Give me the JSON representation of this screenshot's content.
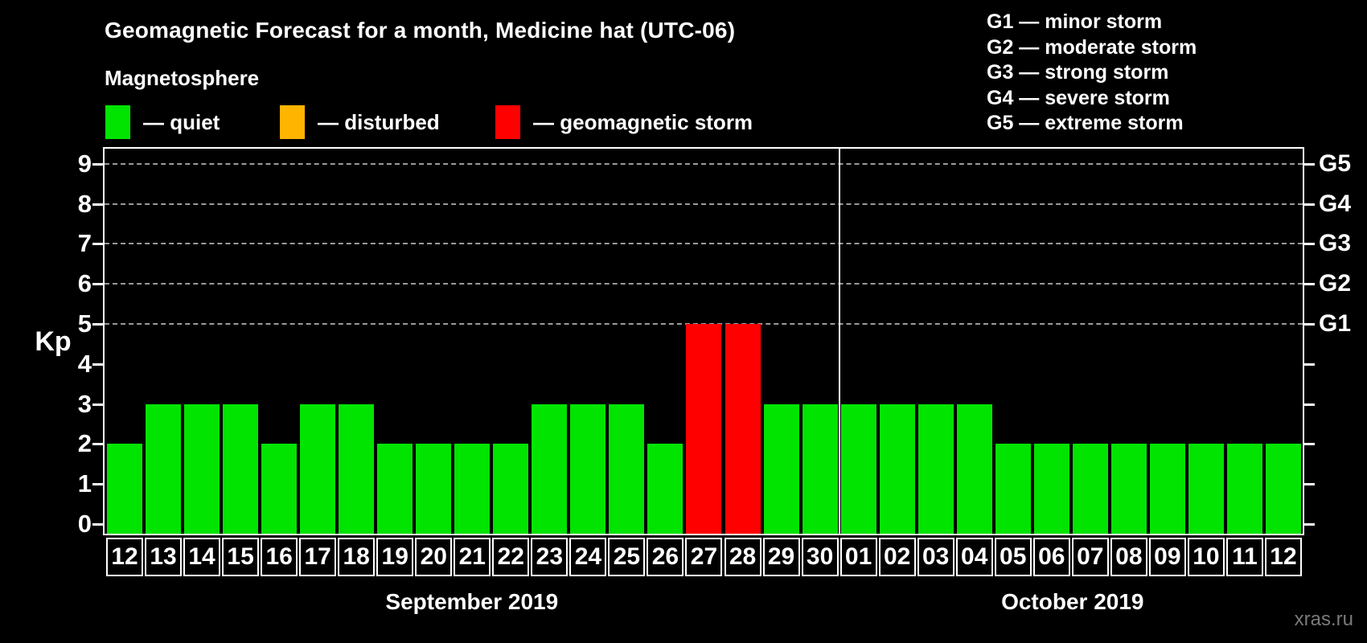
{
  "legend": {
    "heading": "Magnetosphere",
    "items": [
      {
        "name": "quiet",
        "label": "— quiet",
        "color": "#00e400"
      },
      {
        "name": "disturbed",
        "label": "— disturbed",
        "color": "#ffb400"
      },
      {
        "name": "storm",
        "label": "— geomagnetic storm",
        "color": "#ff0000"
      }
    ]
  },
  "g_scale_legend": {
    "lines": [
      "G1 — minor storm",
      "G2 — moderate storm",
      "G3 — strong storm",
      "G4 — severe storm",
      "G5 — extreme storm"
    ]
  },
  "watermark": "xras.ru",
  "chart_data": {
    "type": "bar",
    "title": "Geomagnetic Forecast for a month, Medicine hat (UTC-06)",
    "ylabel": "Kp",
    "ylim": [
      0,
      9
    ],
    "yticks": [
      0,
      1,
      2,
      3,
      4,
      5,
      6,
      7,
      8,
      9
    ],
    "gridlines_at_kp": [
      5,
      6,
      7,
      8,
      9
    ],
    "right_axis_labels": [
      {
        "kp": 5,
        "text": "G1"
      },
      {
        "kp": 6,
        "text": "G2"
      },
      {
        "kp": 7,
        "text": "G3"
      },
      {
        "kp": 8,
        "text": "G4"
      },
      {
        "kp": 9,
        "text": "G5"
      }
    ],
    "months": [
      {
        "label": "September 2019",
        "days": 19
      },
      {
        "label": "October 2019",
        "days": 12
      }
    ],
    "bars": [
      {
        "day": "12",
        "kp": 2,
        "status": "quiet"
      },
      {
        "day": "13",
        "kp": 3,
        "status": "quiet"
      },
      {
        "day": "14",
        "kp": 3,
        "status": "quiet"
      },
      {
        "day": "15",
        "kp": 3,
        "status": "quiet"
      },
      {
        "day": "16",
        "kp": 2,
        "status": "quiet"
      },
      {
        "day": "17",
        "kp": 3,
        "status": "quiet"
      },
      {
        "day": "18",
        "kp": 3,
        "status": "quiet"
      },
      {
        "day": "19",
        "kp": 2,
        "status": "quiet"
      },
      {
        "day": "20",
        "kp": 2,
        "status": "quiet"
      },
      {
        "day": "21",
        "kp": 2,
        "status": "quiet"
      },
      {
        "day": "22",
        "kp": 2,
        "status": "quiet"
      },
      {
        "day": "23",
        "kp": 3,
        "status": "quiet"
      },
      {
        "day": "24",
        "kp": 3,
        "status": "quiet"
      },
      {
        "day": "25",
        "kp": 3,
        "status": "quiet"
      },
      {
        "day": "26",
        "kp": 2,
        "status": "quiet"
      },
      {
        "day": "27",
        "kp": 5,
        "status": "storm"
      },
      {
        "day": "28",
        "kp": 5,
        "status": "storm"
      },
      {
        "day": "29",
        "kp": 3,
        "status": "quiet"
      },
      {
        "day": "30",
        "kp": 3,
        "status": "quiet"
      },
      {
        "day": "01",
        "kp": 3,
        "status": "quiet"
      },
      {
        "day": "02",
        "kp": 3,
        "status": "quiet"
      },
      {
        "day": "03",
        "kp": 3,
        "status": "quiet"
      },
      {
        "day": "04",
        "kp": 3,
        "status": "quiet"
      },
      {
        "day": "05",
        "kp": 2,
        "status": "quiet"
      },
      {
        "day": "06",
        "kp": 2,
        "status": "quiet"
      },
      {
        "day": "07",
        "kp": 2,
        "status": "quiet"
      },
      {
        "day": "08",
        "kp": 2,
        "status": "quiet"
      },
      {
        "day": "09",
        "kp": 2,
        "status": "quiet"
      },
      {
        "day": "10",
        "kp": 2,
        "status": "quiet"
      },
      {
        "day": "11",
        "kp": 2,
        "status": "quiet"
      },
      {
        "day": "12",
        "kp": 2,
        "status": "quiet"
      }
    ]
  }
}
